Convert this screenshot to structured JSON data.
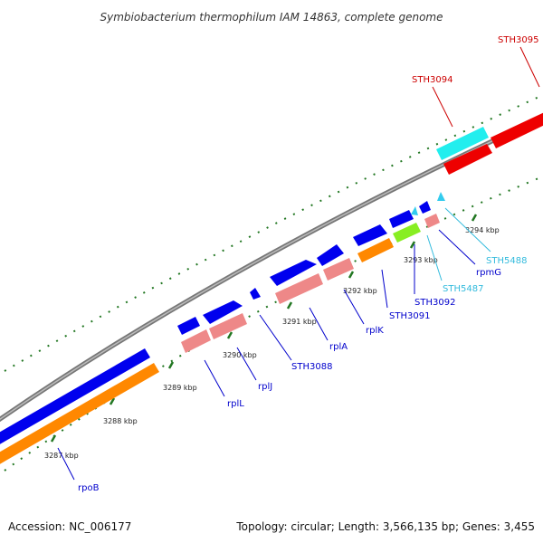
{
  "title": "Symbiobacterium thermophilum IAM 14863, complete genome",
  "footer": {
    "accession": "Accession: NC_006177",
    "summary": "Topology: circular; Length: 3,566,135 bp; Genes: 3,455"
  },
  "scale_labels": [
    "3287 kbp",
    "3288 kbp",
    "3289 kbp",
    "3290 kbp",
    "3291 kbp",
    "3292 kbp",
    "3293 kbp",
    "3294 kbp"
  ],
  "gene_labels": [
    {
      "text": "rpoB",
      "color": "#0000cc"
    },
    {
      "text": "rplL",
      "color": "#0000cc"
    },
    {
      "text": "rplJ",
      "color": "#0000cc"
    },
    {
      "text": "STH3088",
      "color": "#0000cc"
    },
    {
      "text": "rplA",
      "color": "#0000cc"
    },
    {
      "text": "rplK",
      "color": "#0000cc"
    },
    {
      "text": "STH3091",
      "color": "#0000cc"
    },
    {
      "text": "STH3092",
      "color": "#0000cc"
    },
    {
      "text": "STH5487",
      "color": "#33bbdd"
    },
    {
      "text": "rpmG",
      "color": "#0000cc"
    },
    {
      "text": "STH5488",
      "color": "#33bbdd"
    },
    {
      "text": "STH3094",
      "color": "#cc0000"
    },
    {
      "text": "STH3095",
      "color": "#cc0000"
    }
  ],
  "colors": {
    "cds": "#0000ee",
    "gene": "#ee8888",
    "rRNA_orange": "#ff8800",
    "misc_green": "#88ee22",
    "misc_cyan": "#33ccee",
    "red_gene": "#ee0000",
    "backbone": "#888888",
    "ticks": "#227722"
  }
}
